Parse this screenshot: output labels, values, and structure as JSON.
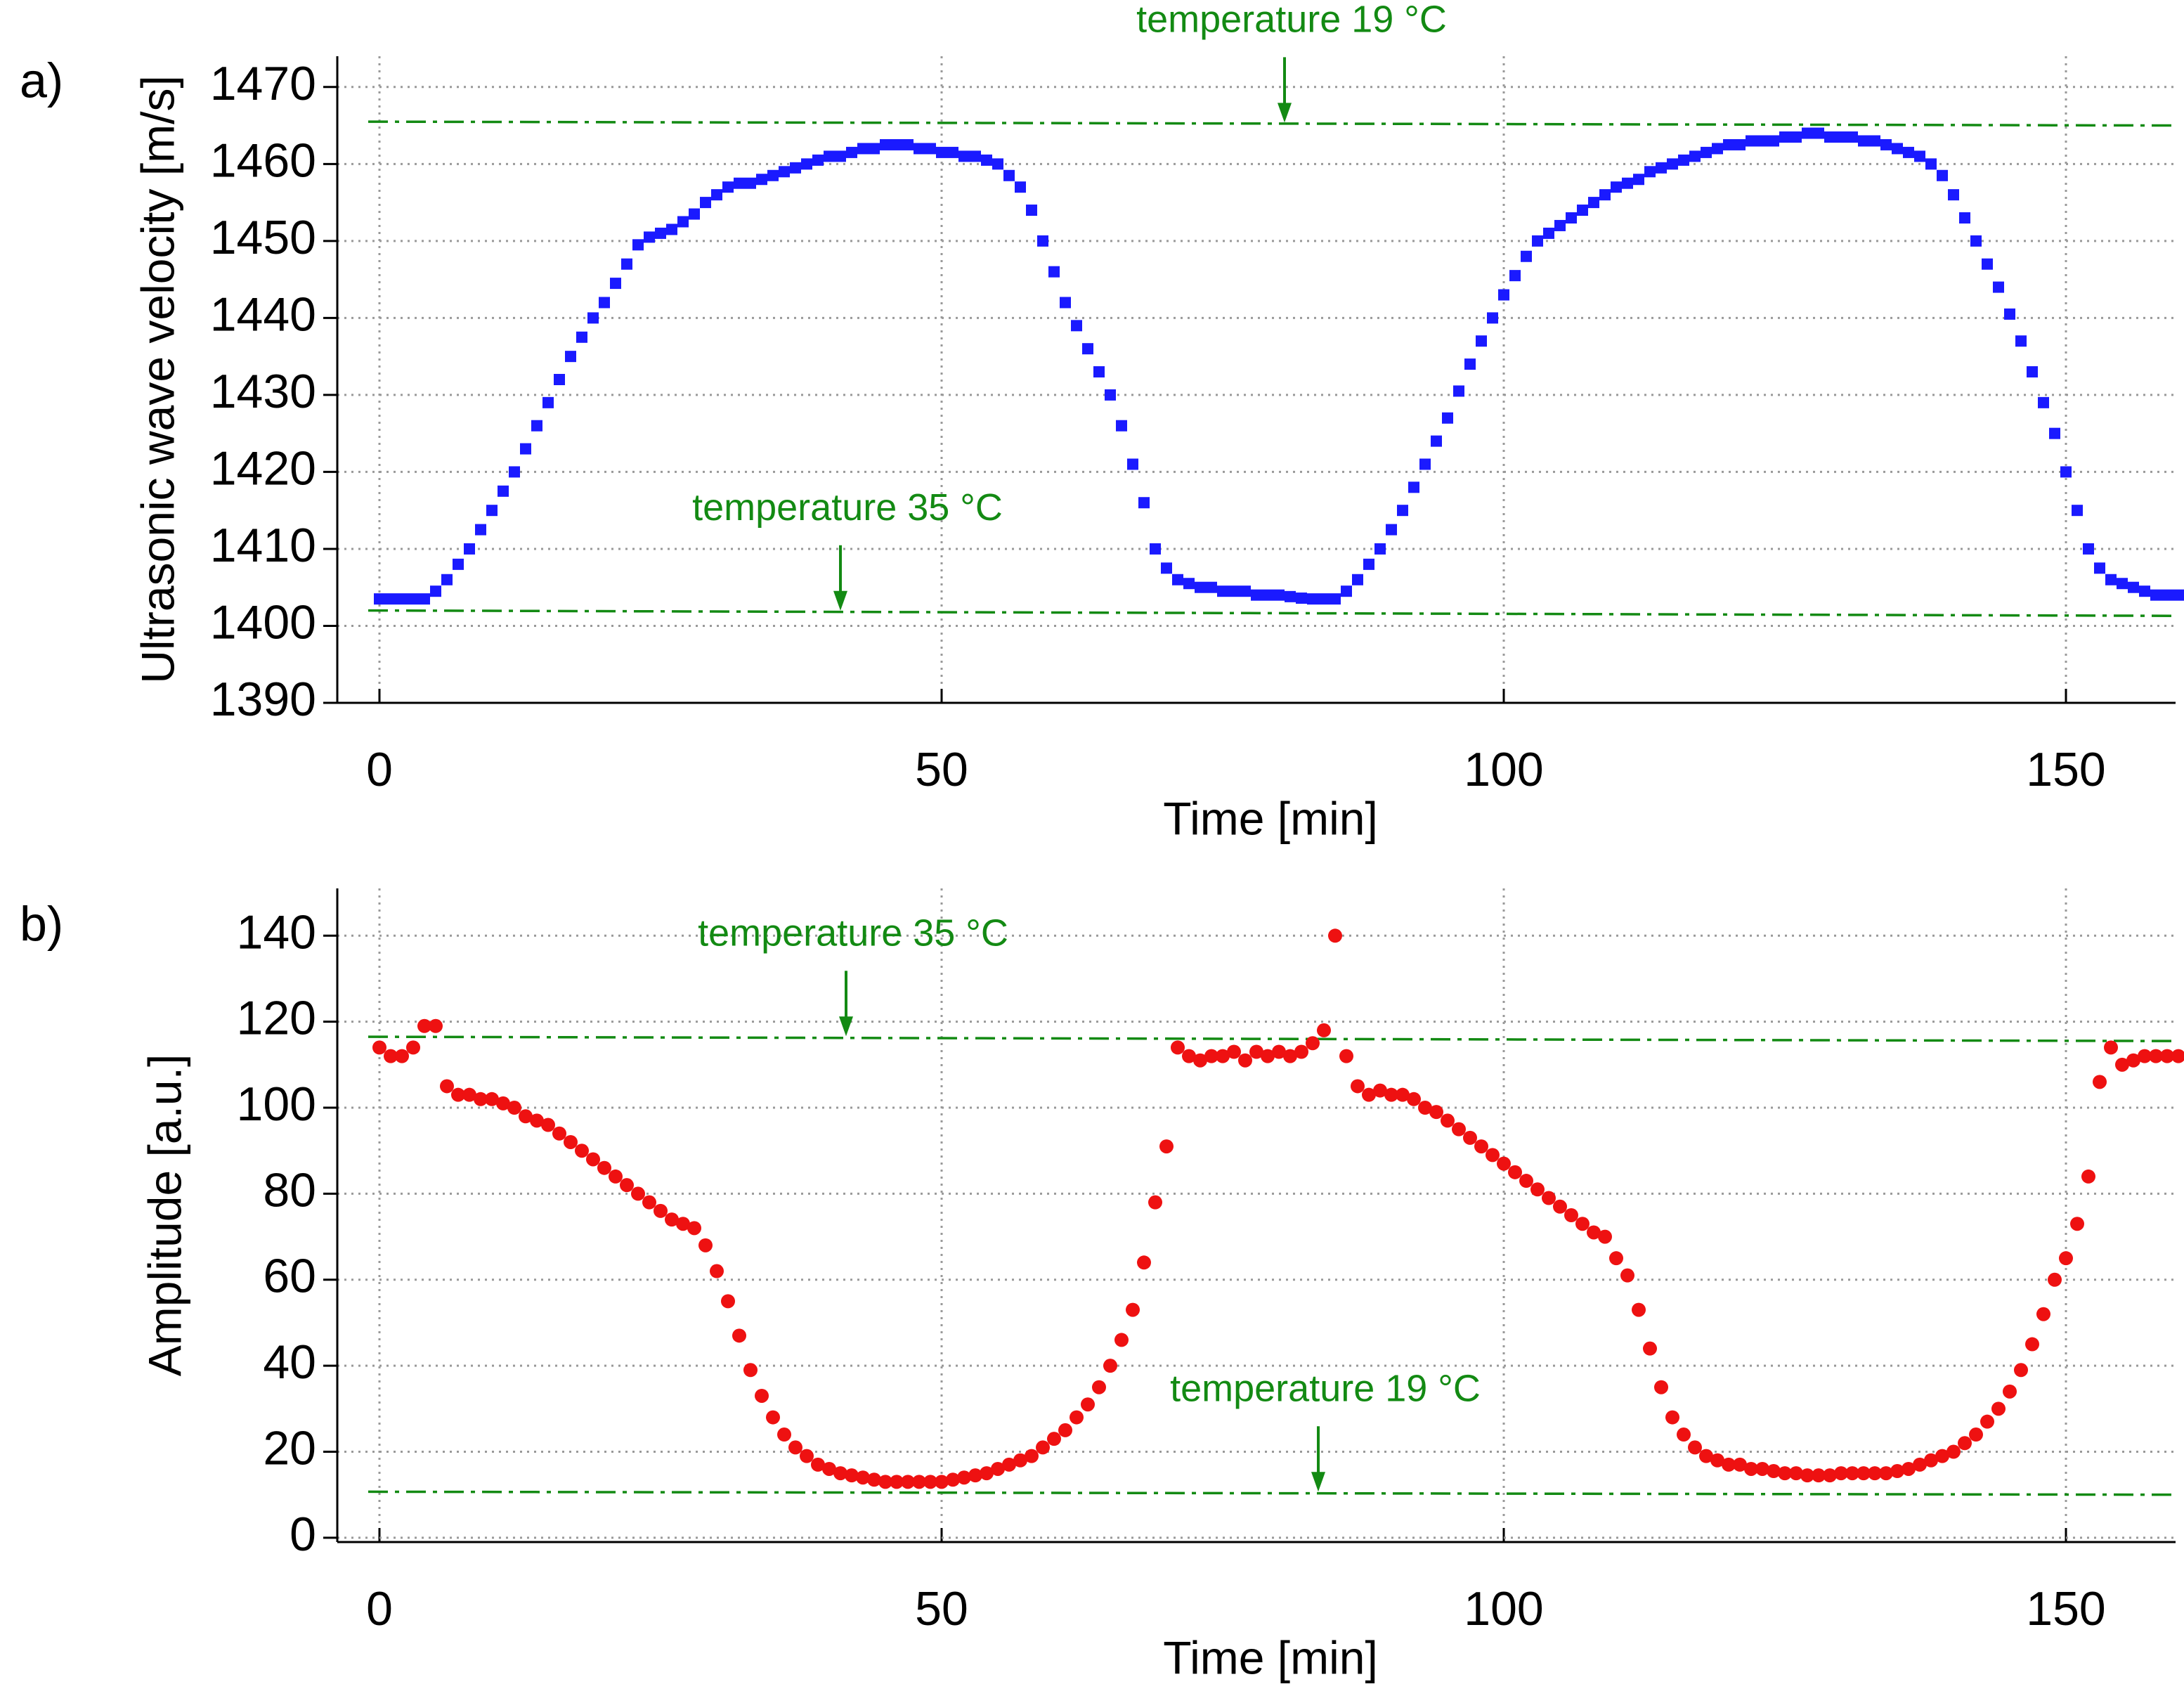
{
  "chart_data": [
    {
      "type": "scatter",
      "panel_label": "a)",
      "xlabel": "Time [min]",
      "ylabel": "Ultrasonic wave velocity [m/s]",
      "xlim": [
        -3.75,
        159.75
      ],
      "ylim": [
        1390,
        1474
      ],
      "xticks": [
        0,
        50,
        100,
        150
      ],
      "yticks": [
        1390,
        1400,
        1410,
        1420,
        1430,
        1440,
        1450,
        1460,
        1470
      ],
      "grid": true,
      "marker": "square",
      "x": [
        0,
        1,
        2,
        3,
        4,
        5,
        6,
        7,
        8,
        9,
        10,
        11,
        12,
        13,
        14,
        15,
        16,
        17,
        18,
        19,
        20,
        21,
        22,
        23,
        24,
        25,
        26,
        27,
        28,
        29,
        30,
        31,
        32,
        33,
        34,
        35,
        36,
        37,
        38,
        39,
        40,
        41,
        42,
        43,
        44,
        45,
        46,
        47,
        48,
        49,
        50,
        51,
        52,
        53,
        54,
        55,
        56,
        57,
        58,
        59,
        60,
        61,
        62,
        63,
        64,
        65,
        66,
        67,
        68,
        69,
        70,
        71,
        72,
        73,
        74,
        75,
        76,
        77,
        78,
        79,
        80,
        81,
        82,
        83,
        84,
        85,
        86,
        87,
        88,
        89,
        90,
        91,
        92,
        93,
        94,
        95,
        96,
        97,
        98,
        99,
        100,
        101,
        102,
        103,
        104,
        105,
        106,
        107,
        108,
        109,
        110,
        111,
        112,
        113,
        114,
        115,
        116,
        117,
        118,
        119,
        120,
        121,
        122,
        123,
        124,
        125,
        126,
        127,
        128,
        129,
        130,
        131,
        132,
        133,
        134,
        135,
        136,
        137,
        138,
        139,
        140,
        141,
        142,
        143,
        144,
        145,
        146,
        147,
        148,
        149,
        150,
        151,
        152,
        153,
        154,
        155,
        156,
        157,
        158,
        159,
        160
      ],
      "series": [
        {
          "color": "#1a1aff",
          "values": [
            1403.5,
            1403.5,
            1403.5,
            1403.5,
            1403.5,
            1404.5,
            1406,
            1408,
            1410,
            1412.5,
            1415,
            1417.5,
            1420,
            1423,
            1426,
            1429,
            1432,
            1435,
            1437.5,
            1440,
            1442,
            1444.5,
            1447,
            1449.5,
            1450.5,
            1451,
            1451.5,
            1452.5,
            1453.5,
            1455,
            1456,
            1457,
            1457.5,
            1457.5,
            1458,
            1458.5,
            1459,
            1459.5,
            1460,
            1460.5,
            1461,
            1461,
            1461.5,
            1462,
            1462,
            1462.5,
            1462.5,
            1462.5,
            1462,
            1462,
            1461.5,
            1461.5,
            1461,
            1461,
            1460.5,
            1460,
            1458.5,
            1457,
            1454,
            1450,
            1446,
            1442,
            1439,
            1436,
            1433,
            1430,
            1426,
            1421,
            1416,
            1410,
            1407.5,
            1406,
            1405.5,
            1405,
            1405,
            1404.5,
            1404.5,
            1404.5,
            1404,
            1404,
            1404,
            1403.8,
            1403.6,
            1403.5,
            1403.5,
            1403.5,
            1404.5,
            1406,
            1408,
            1410,
            1412.5,
            1415,
            1418,
            1421,
            1424,
            1427,
            1430.5,
            1434,
            1437,
            1440,
            1443,
            1445.5,
            1448,
            1450,
            1451,
            1452,
            1453,
            1454,
            1455,
            1456,
            1457,
            1457.5,
            1458,
            1459,
            1459.5,
            1460,
            1460.5,
            1461,
            1461.5,
            1462,
            1462.5,
            1462.5,
            1463,
            1463,
            1463,
            1463.5,
            1463.5,
            1464,
            1464,
            1463.5,
            1463.5,
            1463.5,
            1463,
            1463,
            1462.5,
            1462,
            1461.5,
            1461,
            1460,
            1458.5,
            1456,
            1453,
            1450,
            1447,
            1444,
            1440.5,
            1437,
            1433,
            1429,
            1425,
            1420,
            1415,
            1410,
            1407.5,
            1406,
            1405.5,
            1405,
            1404.5,
            1404,
            1404,
            1404
          ]
        }
      ],
      "reference_lines": [
        {
          "color": "#138a13",
          "x": [
            -1,
            160
          ],
          "values": [
            1465.5,
            1465
          ]
        },
        {
          "color": "#138a13",
          "x": [
            -1,
            160
          ],
          "values": [
            1402,
            1401.3
          ]
        }
      ],
      "annotations": [
        {
          "text": "temperature 19 °C",
          "x": 80.5,
          "y": 1465.2,
          "color": "#138a13"
        },
        {
          "text": "temperature 35 °C",
          "x": 41,
          "y": 1401.8,
          "color": "#138a13"
        }
      ]
    },
    {
      "type": "scatter",
      "panel_label": "b)",
      "xlabel": "Time [min]",
      "ylabel": "Amplitude [a.u.]",
      "xlim": [
        -3.75,
        159.75
      ],
      "ylim": [
        -1,
        151
      ],
      "xticks": [
        0,
        50,
        100,
        150
      ],
      "yticks": [
        0,
        20,
        40,
        60,
        80,
        100,
        120,
        140
      ],
      "grid": true,
      "marker": "circle",
      "x": [
        0,
        1,
        2,
        3,
        4,
        5,
        6,
        7,
        8,
        9,
        10,
        11,
        12,
        13,
        14,
        15,
        16,
        17,
        18,
        19,
        20,
        21,
        22,
        23,
        24,
        25,
        26,
        27,
        28,
        29,
        30,
        31,
        32,
        33,
        34,
        35,
        36,
        37,
        38,
        39,
        40,
        41,
        42,
        43,
        44,
        45,
        46,
        47,
        48,
        49,
        50,
        51,
        52,
        53,
        54,
        55,
        56,
        57,
        58,
        59,
        60,
        61,
        62,
        63,
        64,
        65,
        66,
        67,
        68,
        69,
        70,
        71,
        72,
        73,
        74,
        75,
        76,
        77,
        78,
        79,
        80,
        81,
        82,
        83,
        84,
        85,
        86,
        87,
        88,
        89,
        90,
        91,
        92,
        93,
        94,
        95,
        96,
        97,
        98,
        99,
        100,
        101,
        102,
        103,
        104,
        105,
        106,
        107,
        108,
        109,
        110,
        111,
        112,
        113,
        114,
        115,
        116,
        117,
        118,
        119,
        120,
        121,
        122,
        123,
        124,
        125,
        126,
        127,
        128,
        129,
        130,
        131,
        132,
        133,
        134,
        135,
        136,
        137,
        138,
        139,
        140,
        141,
        142,
        143,
        144,
        145,
        146,
        147,
        148,
        149,
        150,
        151,
        152,
        153,
        154,
        155,
        156,
        157,
        158,
        159,
        160
      ],
      "series": [
        {
          "color": "#ee1111",
          "values": [
            114,
            112,
            112,
            114,
            119,
            119,
            105,
            103,
            103,
            102,
            102,
            101,
            100,
            98,
            97,
            96,
            94,
            92,
            90,
            88,
            86,
            84,
            82,
            80,
            78,
            76,
            74,
            73,
            72,
            68,
            62,
            55,
            47,
            39,
            33,
            28,
            24,
            21,
            19,
            17,
            16,
            15,
            14.5,
            14,
            13.5,
            13,
            13,
            13,
            13,
            13,
            13,
            13.5,
            14,
            14.5,
            15,
            16,
            17,
            18,
            19,
            21,
            23,
            25,
            28,
            31,
            35,
            40,
            46,
            53,
            64,
            78,
            91,
            114,
            112,
            111,
            112,
            112,
            113,
            111,
            113,
            112,
            113,
            112,
            113,
            115,
            118,
            140,
            112,
            105,
            103,
            104,
            103,
            103,
            102,
            100,
            99,
            97,
            95,
            93,
            91,
            89,
            87,
            85,
            83,
            81,
            79,
            77,
            75,
            73,
            71,
            70,
            65,
            61,
            53,
            44,
            35,
            28,
            24,
            21,
            19,
            18,
            17,
            17,
            16,
            16,
            15.5,
            15,
            15,
            14.5,
            14.5,
            14.5,
            15,
            15,
            15,
            15,
            15,
            15.5,
            16,
            17,
            18,
            19,
            20,
            22,
            24,
            27,
            30,
            34,
            39,
            45,
            52,
            60,
            65,
            73,
            84,
            106,
            114,
            110,
            111,
            112,
            112,
            112,
            112
          ]
        }
      ],
      "reference_lines": [
        {
          "color": "#138a13",
          "x": [
            -1,
            160
          ],
          "values": [
            116.5,
            115.5
          ]
        },
        {
          "color": "#138a13",
          "x": [
            -1,
            160
          ],
          "values": [
            10.7,
            10
          ]
        }
      ],
      "annotations": [
        {
          "text": "temperature 35 °C",
          "x": 41.5,
          "y": 116.3,
          "color": "#138a13"
        },
        {
          "text": "temperature 19 °C",
          "x": 83.5,
          "y": 10.4,
          "color": "#138a13"
        }
      ]
    }
  ]
}
